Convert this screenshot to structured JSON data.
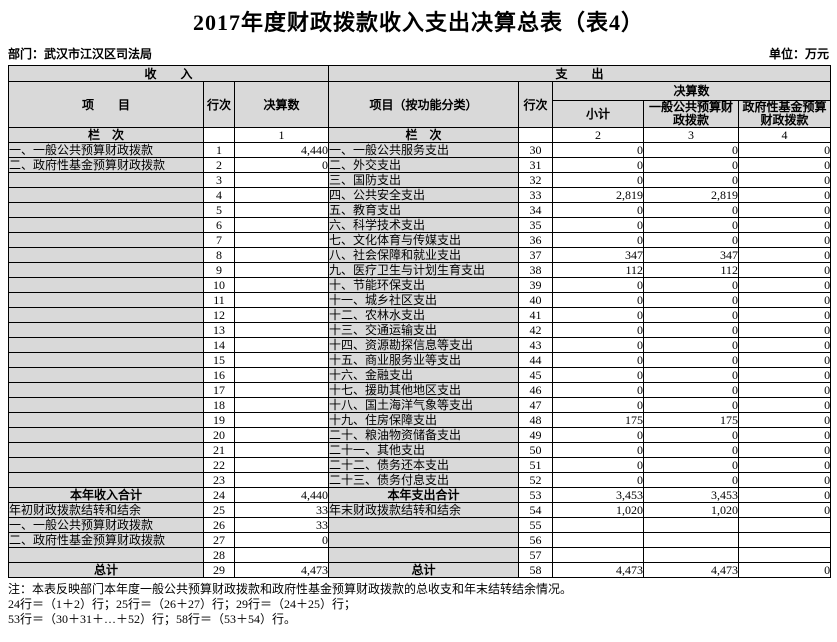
{
  "meta": {
    "title": "2017年度财政拨款收入支出决算总表（表4）",
    "department": "部门：武汉市江汉区司法局",
    "unit": "单位：万元"
  },
  "header": {
    "income_title": "收　　入",
    "expense_title": "支　　出",
    "item_label": "项　　目",
    "line_label": "行次",
    "amount_label": "决算数",
    "expense_item_label": "项目（按功能分类）",
    "subtotal_label": "小计",
    "general_label": "一般公共预算财政拨款",
    "fund_label": "政府性基金预算财政拨款",
    "column_label": "栏　次",
    "col_numbers": [
      "1",
      "2",
      "3",
      "4"
    ]
  },
  "rows": [
    {
      "income": {
        "item": "一、一般公共预算财政拨款",
        "line": "1",
        "value": "4,440"
      },
      "expense": {
        "item": "一、一般公共服务支出",
        "line": "30",
        "subtotal": "0",
        "general": "0",
        "fund": "0"
      }
    },
    {
      "income": {
        "item": "二、政府性基金预算财政拨款",
        "line": "2",
        "value": "0"
      },
      "expense": {
        "item": "二、外交支出",
        "line": "31",
        "subtotal": "0",
        "general": "0",
        "fund": "0"
      }
    },
    {
      "income": {
        "item": "",
        "line": "3",
        "value": ""
      },
      "expense": {
        "item": "三、国防支出",
        "line": "32",
        "subtotal": "0",
        "general": "0",
        "fund": "0"
      }
    },
    {
      "income": {
        "item": "",
        "line": "4",
        "value": ""
      },
      "expense": {
        "item": "四、公共安全支出",
        "line": "33",
        "subtotal": "2,819",
        "general": "2,819",
        "fund": "0"
      }
    },
    {
      "income": {
        "item": "",
        "line": "5",
        "value": ""
      },
      "expense": {
        "item": "五、教育支出",
        "line": "34",
        "subtotal": "0",
        "general": "0",
        "fund": "0"
      }
    },
    {
      "income": {
        "item": "",
        "line": "6",
        "value": ""
      },
      "expense": {
        "item": "六、科学技术支出",
        "line": "35",
        "subtotal": "0",
        "general": "0",
        "fund": "0"
      }
    },
    {
      "income": {
        "item": "",
        "line": "7",
        "value": ""
      },
      "expense": {
        "item": "七、文化体育与传媒支出",
        "line": "36",
        "subtotal": "0",
        "general": "0",
        "fund": "0"
      }
    },
    {
      "income": {
        "item": "",
        "line": "8",
        "value": ""
      },
      "expense": {
        "item": "八、社会保障和就业支出",
        "line": "37",
        "subtotal": "347",
        "general": "347",
        "fund": "0"
      }
    },
    {
      "income": {
        "item": "",
        "line": "9",
        "value": ""
      },
      "expense": {
        "item": "九、医疗卫生与计划生育支出",
        "line": "38",
        "subtotal": "112",
        "general": "112",
        "fund": "0"
      }
    },
    {
      "income": {
        "item": "",
        "line": "10",
        "value": ""
      },
      "expense": {
        "item": "十、节能环保支出",
        "line": "39",
        "subtotal": "0",
        "general": "0",
        "fund": "0"
      }
    },
    {
      "income": {
        "item": "",
        "line": "11",
        "value": ""
      },
      "expense": {
        "item": "十一、城乡社区支出",
        "line": "40",
        "subtotal": "0",
        "general": "0",
        "fund": "0"
      }
    },
    {
      "income": {
        "item": "",
        "line": "12",
        "value": ""
      },
      "expense": {
        "item": "十二、农林水支出",
        "line": "41",
        "subtotal": "0",
        "general": "0",
        "fund": "0"
      }
    },
    {
      "income": {
        "item": "",
        "line": "13",
        "value": ""
      },
      "expense": {
        "item": "十三、交通运输支出",
        "line": "42",
        "subtotal": "0",
        "general": "0",
        "fund": "0"
      }
    },
    {
      "income": {
        "item": "",
        "line": "14",
        "value": ""
      },
      "expense": {
        "item": "十四、资源勘探信息等支出",
        "line": "43",
        "subtotal": "0",
        "general": "0",
        "fund": "0"
      }
    },
    {
      "income": {
        "item": "",
        "line": "15",
        "value": ""
      },
      "expense": {
        "item": "十五、商业服务业等支出",
        "line": "44",
        "subtotal": "0",
        "general": "0",
        "fund": "0"
      }
    },
    {
      "income": {
        "item": "",
        "line": "16",
        "value": ""
      },
      "expense": {
        "item": "十六、金融支出",
        "line": "45",
        "subtotal": "0",
        "general": "0",
        "fund": "0"
      }
    },
    {
      "income": {
        "item": "",
        "line": "17",
        "value": ""
      },
      "expense": {
        "item": "十七、援助其他地区支出",
        "line": "46",
        "subtotal": "0",
        "general": "0",
        "fund": "0"
      }
    },
    {
      "income": {
        "item": "",
        "line": "18",
        "value": ""
      },
      "expense": {
        "item": "十八、国土海洋气象等支出",
        "line": "47",
        "subtotal": "0",
        "general": "0",
        "fund": "0"
      }
    },
    {
      "income": {
        "item": "",
        "line": "19",
        "value": ""
      },
      "expense": {
        "item": "十九、住房保障支出",
        "line": "48",
        "subtotal": "175",
        "general": "175",
        "fund": "0"
      }
    },
    {
      "income": {
        "item": "",
        "line": "20",
        "value": ""
      },
      "expense": {
        "item": "二十、粮油物资储备支出",
        "line": "49",
        "subtotal": "0",
        "general": "0",
        "fund": "0"
      }
    },
    {
      "income": {
        "item": "",
        "line": "21",
        "value": ""
      },
      "expense": {
        "item": "二十一、其他支出",
        "line": "50",
        "subtotal": "0",
        "general": "0",
        "fund": "0"
      }
    },
    {
      "income": {
        "item": "",
        "line": "22",
        "value": ""
      },
      "expense": {
        "item": "二十二、债务还本支出",
        "line": "51",
        "subtotal": "0",
        "general": "0",
        "fund": "0"
      }
    },
    {
      "income": {
        "item": "",
        "line": "23",
        "value": ""
      },
      "expense": {
        "item": "二十三、债务付息支出",
        "line": "52",
        "subtotal": "0",
        "general": "0",
        "fund": "0"
      }
    },
    {
      "income": {
        "item": "本年收入合计",
        "line": "24",
        "value": "4,440",
        "total": true
      },
      "expense": {
        "item": "本年支出合计",
        "line": "53",
        "subtotal": "3,453",
        "general": "3,453",
        "fund": "0",
        "total": true
      }
    },
    {
      "income": {
        "item": "年初财政拨款结转和结余",
        "line": "25",
        "value": "33"
      },
      "expense": {
        "item": "年末财政拨款结转和结余",
        "line": "54",
        "subtotal": "1,020",
        "general": "1,020",
        "fund": "0"
      }
    },
    {
      "income": {
        "item": "一、一般公共预算财政拨款",
        "line": "26",
        "value": "33"
      },
      "expense": {
        "item": "",
        "line": "55",
        "subtotal": "",
        "general": "",
        "fund": ""
      }
    },
    {
      "income": {
        "item": "二、政府性基金预算财政拨款",
        "line": "27",
        "value": "0"
      },
      "expense": {
        "item": "",
        "line": "56",
        "subtotal": "",
        "general": "",
        "fund": ""
      }
    },
    {
      "income": {
        "item": "",
        "line": "28",
        "value": ""
      },
      "expense": {
        "item": "",
        "line": "57",
        "subtotal": "",
        "general": "",
        "fund": ""
      }
    },
    {
      "income": {
        "item": "总计",
        "line": "29",
        "value": "4,473",
        "total": true
      },
      "expense": {
        "item": "总计",
        "line": "58",
        "subtotal": "4,473",
        "general": "4,473",
        "fund": "0",
        "total": true
      }
    }
  ],
  "notes": [
    "注：本表反映部门本年度一般公共预算财政拨款和政府性基金预算财政拨款的总收支和年末结转结余情况。",
    "24行＝（1＋2）行；25行＝（26＋27）行；29行＝（24＋25）行；",
    "53行＝（30＋31＋…＋52）行；58行＝（53＋54）行。"
  ]
}
